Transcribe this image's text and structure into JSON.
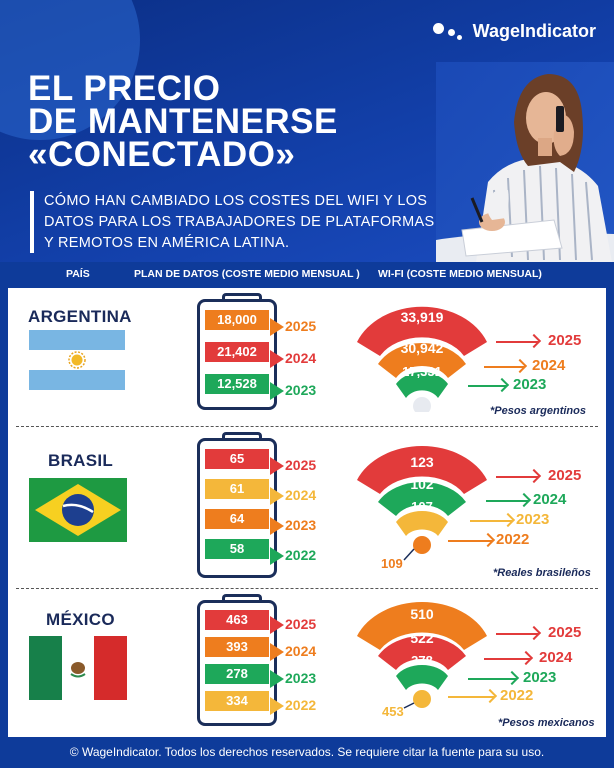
{
  "brand": {
    "name": "WageIndicator"
  },
  "title_lines": [
    "EL PRECIO",
    "DE MANTENERSE",
    "«CONECTADO»"
  ],
  "subtitle": "CÓMO HAN CAMBIADO LOS COSTES DEL WIFI Y LOS DATOS PARA LOS TRABAJADORES DE PLATAFORMAS Y REMOTOS EN AMÉRICA LATINA.",
  "headers": {
    "country": "PAÍS",
    "data_plan": "PLAN DE DATOS (COSTE MEDIO MENSUAL )",
    "wifi": "WI-FI (COSTE MEDIO MENSUAL)"
  },
  "colors": {
    "red": "#e23b3b",
    "orange": "#ee7d1e",
    "yellow": "#f4b73a",
    "green": "#1ea85a",
    "navy": "#1b2e5a",
    "blue_bg": "#0e3b9a"
  },
  "countries": [
    {
      "name": "ARGENTINA",
      "note": "*Pesos argentinos",
      "data_plan": [
        {
          "value": "18,000",
          "year": "2025",
          "color": "orange"
        },
        {
          "value": "21,402",
          "year": "2024",
          "color": "red"
        },
        {
          "value": "12,528",
          "year": "2023",
          "color": "green"
        }
      ],
      "wifi": [
        {
          "value": "33,919",
          "year": "2025",
          "color": "red"
        },
        {
          "value": "30,942",
          "year": "2024",
          "color": "orange"
        },
        {
          "value": "17,331",
          "year": "2023",
          "color": "green"
        }
      ]
    },
    {
      "name": "BRASIL",
      "note": "*Reales brasileños",
      "data_plan": [
        {
          "value": "65",
          "year": "2025",
          "color": "red"
        },
        {
          "value": "61",
          "year": "2024",
          "color": "yellow"
        },
        {
          "value": "64",
          "year": "2023",
          "color": "orange"
        },
        {
          "value": "58",
          "year": "2022",
          "color": "green"
        }
      ],
      "wifi": [
        {
          "value": "123",
          "year": "2025",
          "color": "red"
        },
        {
          "value": "102",
          "year": "2024",
          "color": "green"
        },
        {
          "value": "107",
          "year": "2023",
          "color": "yellow"
        },
        {
          "value": "109",
          "year": "2022",
          "color": "orange"
        }
      ]
    },
    {
      "name": "MÉXICO",
      "note": "*Pesos mexicanos",
      "data_plan": [
        {
          "value": "463",
          "year": "2025",
          "color": "red"
        },
        {
          "value": "393",
          "year": "2024",
          "color": "orange"
        },
        {
          "value": "278",
          "year": "2023",
          "color": "green"
        },
        {
          "value": "334",
          "year": "2022",
          "color": "yellow"
        }
      ],
      "wifi": [
        {
          "value": "510",
          "year": "2025",
          "color": "orange"
        },
        {
          "value": "522",
          "year": "2024",
          "color": "red"
        },
        {
          "value": "378",
          "year": "2023",
          "color": "green"
        },
        {
          "value": "453",
          "year": "2022",
          "color": "yellow"
        }
      ]
    }
  ],
  "footer": "© WageIndicator. Todos los derechos reservados. Se requiere citar la fuente para su uso."
}
